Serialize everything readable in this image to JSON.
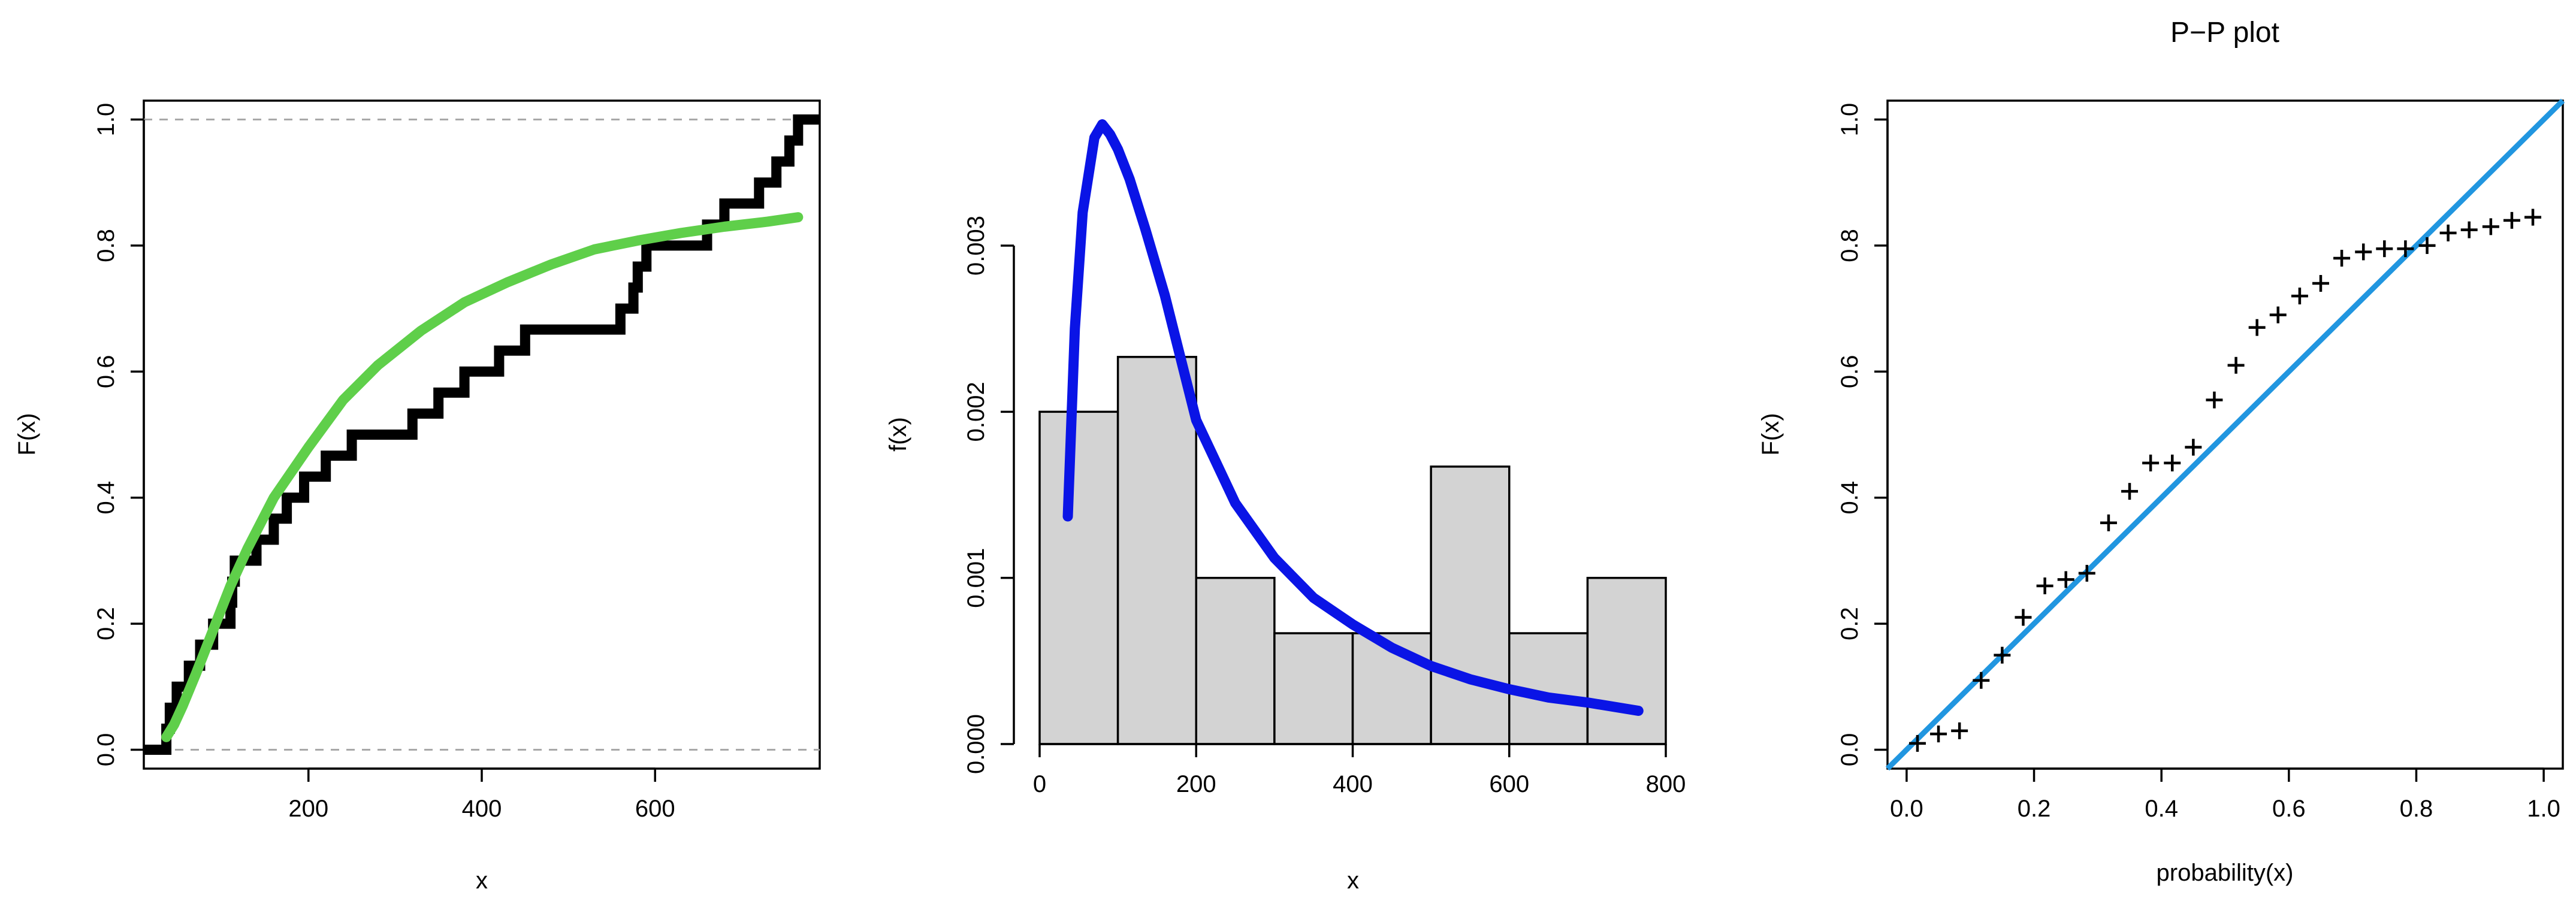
{
  "chart_data": [
    {
      "type": "line",
      "title": "",
      "xlabel": "x",
      "ylabel": "F(x)",
      "xlim": [
        10,
        790
      ],
      "ylim": [
        -0.03,
        1.03
      ],
      "xticks": [
        200,
        400,
        600
      ],
      "yticks": [
        0.0,
        0.2,
        0.4,
        0.6,
        0.8,
        1.0
      ],
      "xtick_labels": [
        "200",
        "400",
        "600"
      ],
      "ytick_labels": [
        "0.0",
        "0.2",
        "0.4",
        "0.6",
        "0.8",
        "1.0"
      ],
      "reference_lines": [
        0.0,
        1.0
      ],
      "series": [
        {
          "kind": "empirical-step",
          "color": "#000000",
          "breaks": [
            36,
            40,
            48,
            62,
            75,
            90,
            110,
            112,
            115,
            140,
            160,
            175,
            195,
            220,
            250,
            320,
            350,
            380,
            420,
            450,
            560,
            575,
            580,
            590,
            660,
            680,
            720,
            740,
            755,
            765
          ],
          "start": 10,
          "end": 790
        },
        {
          "kind": "fitted-cdf",
          "color": "#5fcf4a",
          "x": [
            36,
            45,
            55,
            70,
            90,
            110,
            130,
            160,
            200,
            240,
            280,
            330,
            380,
            430,
            480,
            530,
            580,
            630,
            680,
            730,
            765
          ],
          "y": [
            0.02,
            0.04,
            0.07,
            0.12,
            0.19,
            0.26,
            0.32,
            0.4,
            0.48,
            0.555,
            0.61,
            0.665,
            0.71,
            0.742,
            0.77,
            0.794,
            0.808,
            0.82,
            0.83,
            0.838,
            0.845
          ]
        }
      ]
    },
    {
      "type": "bar",
      "title": "",
      "xlabel": "x",
      "ylabel": "f(x)",
      "xlim": [
        0,
        800
      ],
      "ylim": [
        0,
        0.0035
      ],
      "xticks": [
        0,
        200,
        400,
        600,
        800
      ],
      "yticks": [
        0.0,
        0.001,
        0.002,
        0.003
      ],
      "xtick_labels": [
        "0",
        "200",
        "400",
        "600",
        "800"
      ],
      "ytick_labels": [
        "0.000",
        "0.001",
        "0.002",
        "0.003"
      ],
      "bins": [
        {
          "from": 0,
          "to": 100,
          "density": 0.002
        },
        {
          "from": 100,
          "to": 200,
          "density": 0.00233
        },
        {
          "from": 200,
          "to": 300,
          "density": 0.001
        },
        {
          "from": 300,
          "to": 400,
          "density": 0.000667
        },
        {
          "from": 400,
          "to": 500,
          "density": 0.000667
        },
        {
          "from": 500,
          "to": 600,
          "density": 0.00167
        },
        {
          "from": 600,
          "to": 700,
          "density": 0.000667
        },
        {
          "from": 700,
          "to": 800,
          "density": 0.001
        }
      ],
      "bar_color": "#d3d3d3",
      "density_curve": {
        "color": "#0a14e6",
        "x": [
          36,
          45,
          55,
          70,
          80,
          90,
          100,
          115,
          135,
          160,
          200,
          250,
          300,
          350,
          400,
          450,
          500,
          550,
          600,
          650,
          700,
          765
        ],
        "y": [
          0.00137,
          0.0025,
          0.0032,
          0.00365,
          0.00373,
          0.00367,
          0.00358,
          0.0034,
          0.0031,
          0.0027,
          0.00195,
          0.00145,
          0.00112,
          0.00088,
          0.00072,
          0.00058,
          0.00047,
          0.00039,
          0.00033,
          0.00028,
          0.00025,
          0.0002
        ]
      }
    },
    {
      "type": "scatter",
      "title": "P−P plot",
      "xlabel": "probability(x)",
      "ylabel": "F(x)",
      "xlim": [
        -0.03,
        1.03
      ],
      "ylim": [
        -0.03,
        1.03
      ],
      "xticks": [
        0.0,
        0.2,
        0.4,
        0.6,
        0.8,
        1.0
      ],
      "yticks": [
        0.0,
        0.2,
        0.4,
        0.6,
        0.8,
        1.0
      ],
      "xtick_labels": [
        "0.0",
        "0.2",
        "0.4",
        "0.6",
        "0.8",
        "1.0"
      ],
      "ytick_labels": [
        "0.0",
        "0.2",
        "0.4",
        "0.6",
        "0.8",
        "1.0"
      ],
      "marker": "+",
      "points": {
        "x": [
          0.017,
          0.05,
          0.083,
          0.117,
          0.15,
          0.183,
          0.217,
          0.25,
          0.283,
          0.317,
          0.35,
          0.383,
          0.417,
          0.45,
          0.483,
          0.517,
          0.55,
          0.583,
          0.617,
          0.65,
          0.683,
          0.717,
          0.75,
          0.783,
          0.817,
          0.85,
          0.883,
          0.917,
          0.95,
          0.983
        ],
        "y": [
          0.01,
          0.025,
          0.03,
          0.11,
          0.15,
          0.21,
          0.26,
          0.27,
          0.28,
          0.36,
          0.41,
          0.455,
          0.455,
          0.48,
          0.555,
          0.61,
          0.67,
          0.69,
          0.72,
          0.74,
          0.78,
          0.79,
          0.795,
          0.795,
          0.8,
          0.82,
          0.825,
          0.83,
          0.84,
          0.845
        ]
      },
      "reference_line": {
        "color": "#2196e0",
        "x": [
          -0.03,
          1.03
        ],
        "y": [
          -0.03,
          1.03
        ]
      }
    }
  ]
}
